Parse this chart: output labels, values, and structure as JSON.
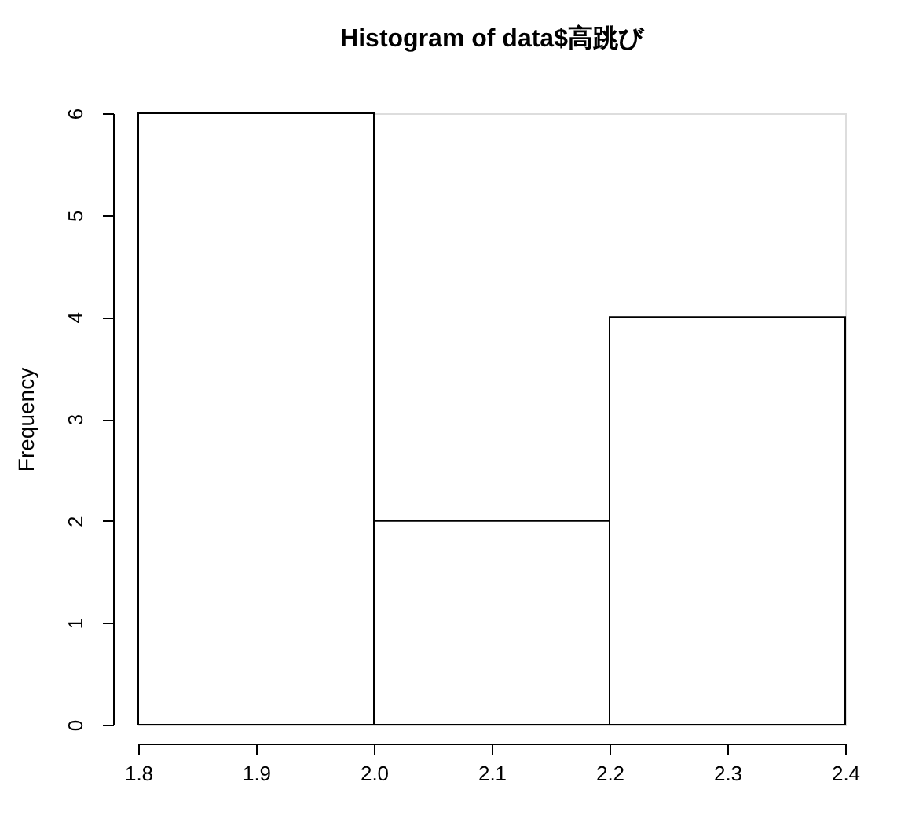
{
  "chart_data": {
    "type": "histogram",
    "title": "Histogram of data$高跳び",
    "ylabel": "Frequency",
    "bins": [
      1.8,
      2.0,
      2.2,
      2.4
    ],
    "values": [
      6,
      2,
      4
    ],
    "color": "#ffffff",
    "xlim": [
      1.8,
      2.4
    ],
    "xticks": [
      1.8,
      1.9,
      {
        "value": 2,
        "label": "2.0"
      },
      2.1,
      2.2,
      2.3,
      2.4
    ],
    "ylim": [
      0,
      6
    ],
    "yticks": [
      0,
      1,
      2,
      3,
      4,
      5,
      6
    ],
    "grid": false
  }
}
